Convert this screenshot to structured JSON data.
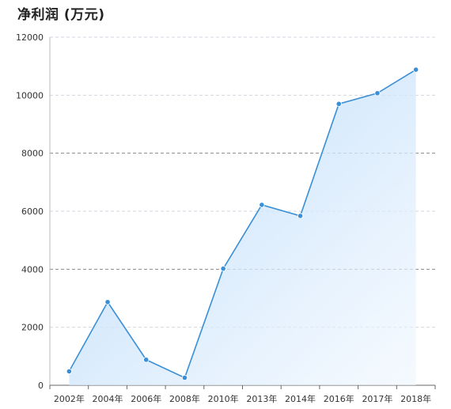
{
  "chart_data": {
    "type": "area",
    "title": "净利润 (万元)",
    "xlabel": "",
    "ylabel": "",
    "categories": [
      "2002年",
      "2004年",
      "2006年",
      "2008年",
      "2010年",
      "2013年",
      "2014年",
      "2016年",
      "2017年",
      "2018年"
    ],
    "series": [
      {
        "values": [
          480,
          2870,
          880,
          260,
          4020,
          6220,
          5840,
          9700,
          10070,
          10880
        ]
      }
    ],
    "ylim": [
      0,
      12000
    ],
    "yticks": [
      0,
      2000,
      4000,
      6000,
      8000,
      10000,
      12000
    ],
    "grid": true,
    "line_color": "#3a8fd6",
    "fill_color": "#c9e3fb"
  }
}
